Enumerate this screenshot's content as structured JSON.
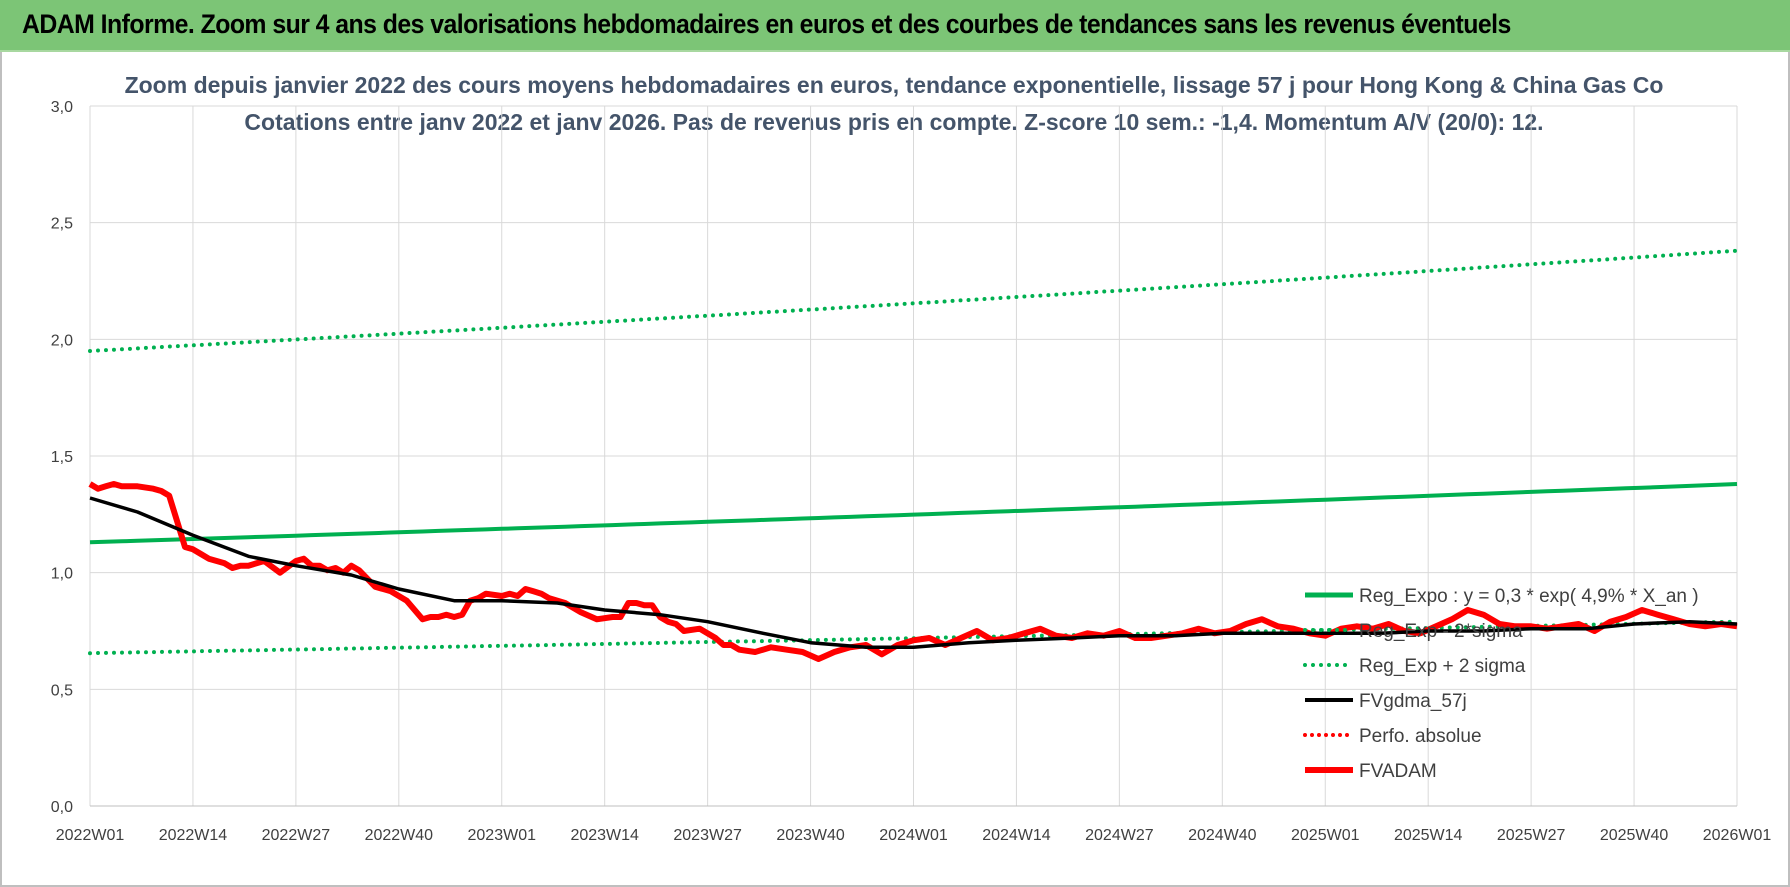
{
  "header": {
    "title": "ADAM Informe. Zoom sur 4 ans des valorisations hebdomadaires en euros et des courbes de tendances sans les revenus éventuels"
  },
  "chart_data": {
    "type": "line",
    "title": "Zoom depuis janvier 2022 des cours moyens hebdomadaires en euros, tendance exponentielle, lissage 57 j pour Hong Kong & China Gas Co",
    "subtitle": "Cotations entre janv 2022 et janv 2026. Pas de revenus pris en compte. Z-score 10 sem.: -1,4. Momentum A/V (20/0): 12.",
    "xlabel": "",
    "ylabel": "",
    "ylim": [
      0,
      3
    ],
    "yticks": [
      "0,0",
      "0,5",
      "1,0",
      "1,5",
      "2,0",
      "2,5",
      "3,0"
    ],
    "xticks": [
      "2022W01",
      "2022W14",
      "2022W27",
      "2022W40",
      "2023W01",
      "2023W14",
      "2023W27",
      "2023W40",
      "2024W01",
      "2024W14",
      "2024W27",
      "2024W40",
      "2025W01",
      "2025W14",
      "2025W27",
      "2025W40",
      "2026W01"
    ],
    "grid": "vertical and horizontal",
    "legend_position": "bottom-right",
    "colors": {
      "reg_expo": "#00b050",
      "fvgdma": "#000000",
      "perfo": "#ff0000",
      "fvadam": "#ff0000",
      "grid": "#d9d9d9",
      "title": "#44546a"
    },
    "legend": [
      {
        "label": "Reg_Expo : y = 0,3 * exp( 4,9% *  X_an )",
        "style": "solid-green"
      },
      {
        "label": "Reg_Exp - 2*sigma",
        "style": "dotted-green"
      },
      {
        "label": "Reg_Exp + 2 sigma",
        "style": "dotted-green"
      },
      {
        "label": "FVgdma_57j",
        "style": "solid-black"
      },
      {
        "label": "Perfo. absolue",
        "style": "dotted-red"
      },
      {
        "label": "FVADAM",
        "style": "solid-red"
      }
    ],
    "series": [
      {
        "name": "Reg_Expo : y = 0,3 * exp( 4,9% *  X_an )",
        "key": "reg_expo",
        "x": [
          0,
          208
        ],
        "values": [
          1.13,
          1.38
        ],
        "exponential": true
      },
      {
        "name": "Reg_Exp - 2*sigma",
        "key": "reg_minus",
        "x": [
          0,
          208
        ],
        "values": [
          0.655,
          0.79
        ],
        "exponential": true
      },
      {
        "name": "Reg_Exp + 2 sigma",
        "key": "reg_plus",
        "x": [
          0,
          208
        ],
        "values": [
          1.95,
          2.38
        ],
        "exponential": true
      },
      {
        "name": "FVgdma_57j",
        "key": "fvgdma",
        "x": [
          0,
          6,
          13,
          20,
          26,
          33,
          39,
          46,
          52,
          59,
          65,
          72,
          78,
          85,
          91,
          98,
          104,
          111,
          117,
          124,
          130,
          137,
          143,
          150,
          156,
          163,
          169,
          176,
          182,
          189,
          195,
          202,
          208
        ],
        "values": [
          1.32,
          1.26,
          1.16,
          1.07,
          1.03,
          0.99,
          0.93,
          0.88,
          0.88,
          0.87,
          0.84,
          0.82,
          0.79,
          0.74,
          0.7,
          0.68,
          0.68,
          0.7,
          0.71,
          0.72,
          0.73,
          0.73,
          0.74,
          0.74,
          0.74,
          0.74,
          0.75,
          0.75,
          0.76,
          0.76,
          0.78,
          0.79,
          0.78
        ]
      },
      {
        "name": "FVADAM",
        "key": "fvadam",
        "x": [
          0,
          1,
          2,
          3,
          4,
          6,
          8,
          9,
          10,
          11,
          12,
          13,
          14,
          15,
          16,
          17,
          18,
          19,
          20,
          22,
          24,
          26,
          27,
          28,
          29,
          30,
          31,
          32,
          33,
          34,
          36,
          38,
          40,
          42,
          43,
          44,
          45,
          46,
          47,
          48,
          49,
          50,
          52,
          53,
          54,
          55,
          56,
          57,
          58,
          60,
          62,
          64,
          66,
          67,
          68,
          69,
          70,
          71,
          72,
          73,
          74,
          75,
          77,
          79,
          80,
          81,
          82,
          84,
          86,
          88,
          90,
          92,
          94,
          96,
          98,
          100,
          102,
          104,
          106,
          108,
          110,
          112,
          114,
          116,
          118,
          120,
          122,
          124,
          126,
          128,
          130,
          132,
          134,
          136,
          138,
          140,
          142,
          144,
          146,
          148,
          150,
          152,
          154,
          156,
          158,
          160,
          162,
          164,
          166,
          168,
          170,
          172,
          174,
          176,
          178,
          180,
          182,
          184,
          186,
          188,
          190,
          192,
          194,
          196,
          198,
          200,
          202,
          204,
          206,
          208
        ],
        "values": [
          1.38,
          1.36,
          1.37,
          1.38,
          1.37,
          1.37,
          1.36,
          1.35,
          1.33,
          1.22,
          1.11,
          1.1,
          1.08,
          1.06,
          1.05,
          1.04,
          1.02,
          1.03,
          1.03,
          1.05,
          1.0,
          1.05,
          1.06,
          1.03,
          1.03,
          1.01,
          1.02,
          1.0,
          1.03,
          1.01,
          0.94,
          0.92,
          0.88,
          0.8,
          0.81,
          0.81,
          0.82,
          0.81,
          0.82,
          0.88,
          0.89,
          0.91,
          0.9,
          0.91,
          0.9,
          0.93,
          0.92,
          0.91,
          0.89,
          0.87,
          0.83,
          0.8,
          0.81,
          0.81,
          0.87,
          0.87,
          0.86,
          0.86,
          0.81,
          0.79,
          0.78,
          0.75,
          0.76,
          0.72,
          0.69,
          0.69,
          0.67,
          0.66,
          0.68,
          0.67,
          0.66,
          0.63,
          0.66,
          0.68,
          0.69,
          0.65,
          0.69,
          0.71,
          0.72,
          0.69,
          0.72,
          0.75,
          0.71,
          0.72,
          0.74,
          0.76,
          0.73,
          0.72,
          0.74,
          0.73,
          0.75,
          0.72,
          0.72,
          0.73,
          0.74,
          0.76,
          0.74,
          0.75,
          0.78,
          0.8,
          0.77,
          0.76,
          0.74,
          0.73,
          0.76,
          0.77,
          0.76,
          0.78,
          0.75,
          0.74,
          0.77,
          0.8,
          0.84,
          0.82,
          0.78,
          0.77,
          0.77,
          0.76,
          0.77,
          0.78,
          0.75,
          0.79,
          0.81,
          0.84,
          0.82,
          0.8,
          0.78,
          0.77,
          0.78,
          0.77
        ]
      }
    ]
  }
}
